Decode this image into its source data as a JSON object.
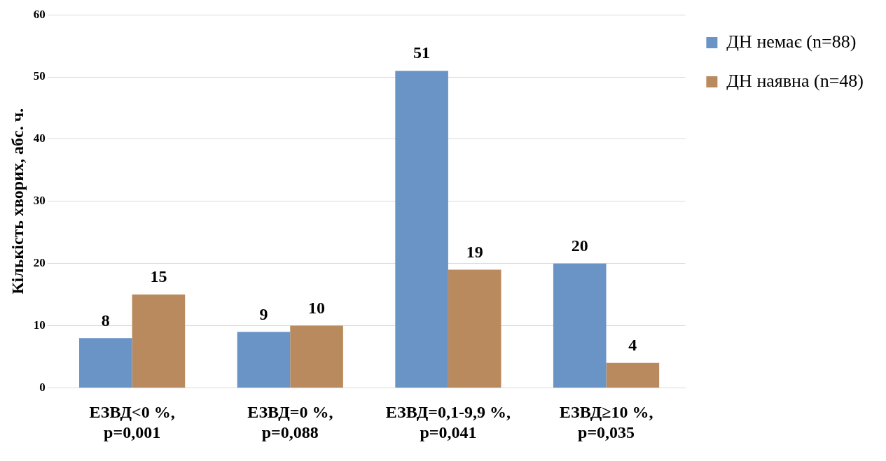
{
  "chart_data": {
    "type": "bar",
    "ylabel": "Кількість хворих, абс. ч.",
    "categories": [
      "ЕЗВД<0 %,\np=0,001",
      "ЕЗВД=0 %,\np=0,088",
      "ЕЗВД=0,1-9,9 %,\np=0,041",
      "ЕЗВД≥10 %,\np=0,035"
    ],
    "series": [
      {
        "name": "ДН немає (n=88)",
        "color": "#6a94c6",
        "values": [
          8,
          9,
          51,
          20
        ]
      },
      {
        "name": "ДН наявна (n=48)",
        "color": "#b98a5e",
        "values": [
          15,
          10,
          19,
          4
        ]
      }
    ],
    "ylim": [
      0,
      60
    ],
    "yticks": [
      0,
      10,
      20,
      30,
      40,
      50,
      60
    ],
    "grid": "y",
    "legend": "right",
    "data_labels": true
  }
}
